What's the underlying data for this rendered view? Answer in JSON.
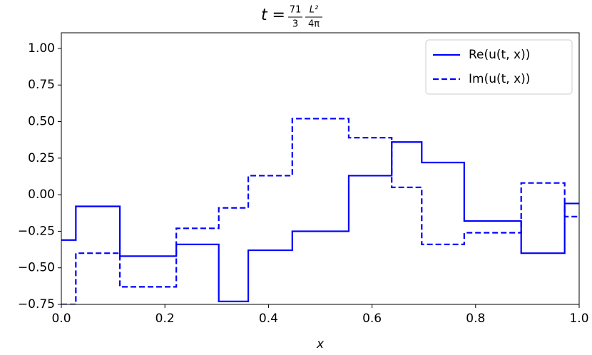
{
  "chart_data": {
    "type": "line",
    "title": {
      "lhs": "t =",
      "fractions": [
        [
          "71",
          "3"
        ],
        [
          "L²",
          "4π"
        ]
      ]
    },
    "x_label": "x",
    "x": [
      0,
      0.028,
      0.028,
      0.113,
      0.113,
      0.222,
      0.222,
      0.304,
      0.304,
      0.361,
      0.361,
      0.446,
      0.446,
      0.555,
      0.555,
      0.638,
      0.638,
      0.696,
      0.696,
      0.778,
      0.778,
      0.888,
      0.888,
      0.972,
      0.972,
      1.0
    ],
    "series": [
      {
        "name": "Re(u(t, x))",
        "color": "#0000ff",
        "style": "solid",
        "values": [
          -0.31,
          -0.31,
          -0.08,
          -0.08,
          -0.42,
          -0.42,
          -0.34,
          -0.34,
          -0.73,
          -0.73,
          -0.38,
          -0.38,
          -0.25,
          -0.25,
          0.13,
          0.13,
          0.36,
          0.36,
          0.22,
          0.22,
          -0.18,
          -0.18,
          -0.4,
          -0.4,
          -0.06,
          -0.06
        ]
      },
      {
        "name": "Im(u(t, x))",
        "color": "#0000ff",
        "style": "dashed",
        "values": [
          -0.75,
          -0.75,
          -0.4,
          -0.4,
          -0.63,
          -0.63,
          -0.23,
          -0.23,
          -0.09,
          -0.09,
          0.13,
          0.13,
          0.52,
          0.52,
          0.39,
          0.39,
          0.05,
          0.05,
          -0.34,
          -0.34,
          -0.26,
          -0.26,
          0.08,
          0.08,
          -0.15,
          -0.15
        ]
      }
    ],
    "xlim": [
      0,
      1
    ],
    "ylim": [
      -0.75,
      1.107
    ],
    "xticks": [
      {
        "value": 0,
        "label": "0.0"
      },
      {
        "value": 0.2,
        "label": "0.2"
      },
      {
        "value": 0.4,
        "label": "0.4"
      },
      {
        "value": 0.6,
        "label": "0.6"
      },
      {
        "value": 0.8,
        "label": "0.8"
      },
      {
        "value": 1.0,
        "label": "1.0"
      }
    ],
    "yticks": [
      {
        "value": -0.75,
        "label": "−0.75"
      },
      {
        "value": -0.5,
        "label": "−0.50"
      },
      {
        "value": -0.25,
        "label": "−0.25"
      },
      {
        "value": 0,
        "label": "0.00"
      },
      {
        "value": 0.25,
        "label": "0.25"
      },
      {
        "value": 0.5,
        "label": "0.50"
      },
      {
        "value": 0.75,
        "label": "0.75"
      },
      {
        "value": 1.0,
        "label": "1.00"
      }
    ],
    "legend": "upper right",
    "grid": false
  }
}
